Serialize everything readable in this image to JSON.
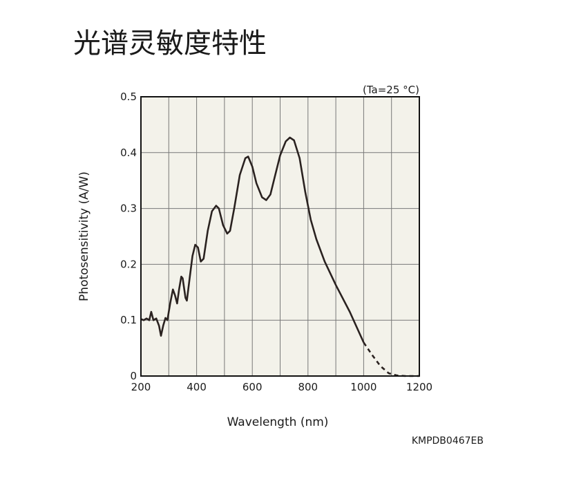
{
  "chart_data": {
    "type": "line",
    "title": "光谱灵敏度特性",
    "annotation": "(Ta=25 °C)",
    "code": "KMPDB0467EB",
    "xlabel": "Wavelength (nm)",
    "ylabel": "Photosensitivity (A/W)",
    "xlim": [
      200,
      1200
    ],
    "ylim": [
      0,
      0.5
    ],
    "xticks": [
      200,
      400,
      600,
      800,
      1000,
      1200
    ],
    "x_minor_ticks": [
      300,
      500,
      700,
      900,
      1100
    ],
    "yticks": [
      0,
      0.1,
      0.2,
      0.3,
      0.4,
      0.5
    ],
    "grid": true,
    "background": "#f3f2ea",
    "series": [
      {
        "color": "#2a2220",
        "style": "solid",
        "x": [
          200,
          210,
          220,
          230,
          237,
          245,
          255,
          265,
          272,
          280,
          288,
          295,
          305,
          315,
          322,
          330,
          337,
          345,
          350,
          360,
          365,
          375,
          385,
          395,
          405,
          415,
          425,
          440,
          455,
          470,
          480,
          495,
          510,
          520,
          535,
          555,
          575,
          585,
          600,
          615,
          635,
          650,
          665,
          680,
          700,
          720,
          735,
          750,
          770,
          790,
          810,
          830,
          860,
          900,
          950,
          1000
        ],
        "values": [
          0.102,
          0.1,
          0.103,
          0.1,
          0.115,
          0.1,
          0.103,
          0.09,
          0.072,
          0.09,
          0.104,
          0.1,
          0.13,
          0.155,
          0.145,
          0.13,
          0.155,
          0.178,
          0.175,
          0.14,
          0.135,
          0.175,
          0.215,
          0.235,
          0.23,
          0.205,
          0.21,
          0.26,
          0.295,
          0.305,
          0.3,
          0.27,
          0.255,
          0.26,
          0.3,
          0.36,
          0.39,
          0.393,
          0.375,
          0.345,
          0.32,
          0.315,
          0.325,
          0.355,
          0.395,
          0.42,
          0.427,
          0.422,
          0.39,
          0.33,
          0.28,
          0.245,
          0.205,
          0.163,
          0.115,
          0.06
        ]
      },
      {
        "color": "#2a2220",
        "style": "dashed",
        "x": [
          1000,
          1030,
          1060,
          1090,
          1120,
          1150,
          1200
        ],
        "values": [
          0.06,
          0.038,
          0.018,
          0.005,
          0.001,
          0,
          0
        ]
      }
    ]
  }
}
